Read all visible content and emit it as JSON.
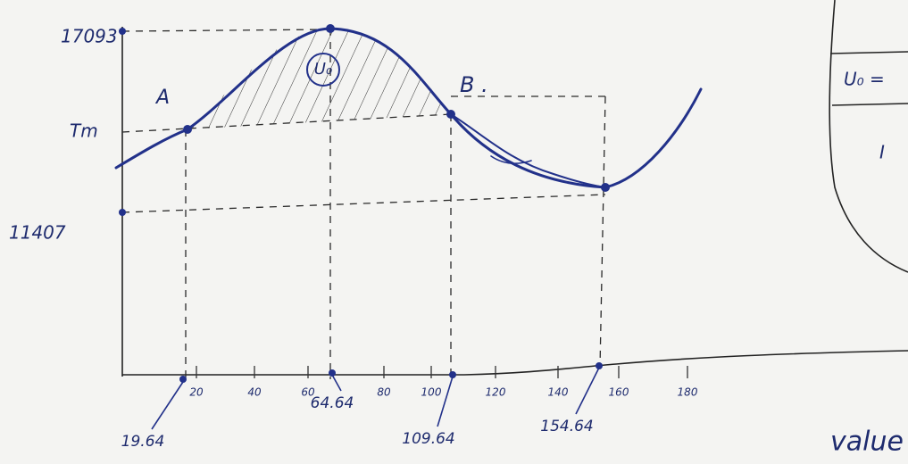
{
  "y_labels": {
    "max": "17093",
    "mean": "Tm",
    "min": "11407"
  },
  "points": {
    "a": "A",
    "b": "B .",
    "area": "U₀"
  },
  "x_ticks": [
    "20",
    "40",
    "60",
    "80",
    "100",
    "120",
    "140",
    "160",
    "180"
  ],
  "crossings": [
    "19.64",
    "64.64",
    "109.64",
    "154.64"
  ],
  "side_note": {
    "formula": "U₀ =",
    "line2": "I"
  },
  "footer_text": "value"
}
